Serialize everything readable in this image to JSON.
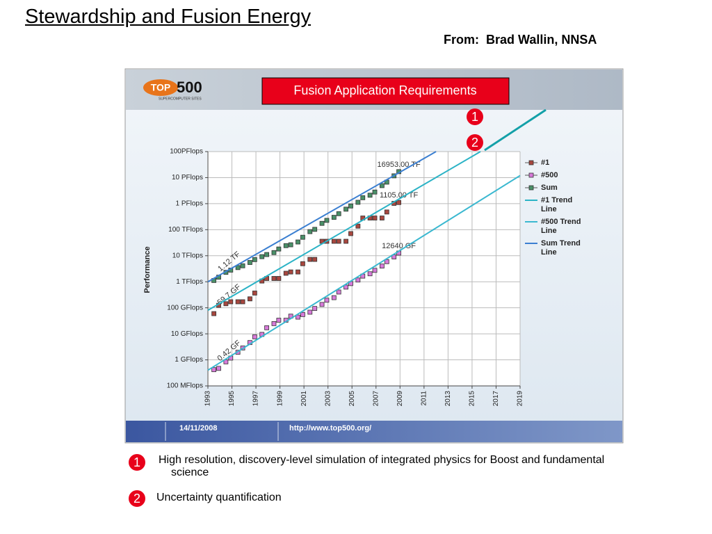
{
  "title": "Stewardship and Fusion Energy",
  "source": "From:  Brad Wallin, NNSA",
  "banner": {
    "logo_a": "TOP",
    "logo_b": "500",
    "logo_subtitle": "SUPERCOMPUTER SITES",
    "overlay": "Fusion Application Requirements"
  },
  "footer": {
    "date": "14/11/2008",
    "url": "http://www.top500.org/"
  },
  "markers": [
    "1",
    "2"
  ],
  "notes": [
    {
      "number": "1",
      "text": "High resolution, discovery-level simulation of integrated physics for Boost and fundamental science"
    },
    {
      "number": "2",
      "text": "Uncertainty quantification"
    }
  ],
  "chart_data": {
    "type": "line",
    "y_label": "Performance",
    "log_y": true,
    "grid": true,
    "legend": "right",
    "xlim": [
      1993,
      2019
    ],
    "xticks": [
      1993,
      1995,
      1997,
      1999,
      2001,
      2003,
      2005,
      2007,
      2009,
      2011,
      2013,
      2015,
      2017,
      2019
    ],
    "ylim": [
      0.1,
      100000000
    ],
    "yticks": [
      {
        "value": 0.1,
        "label": "100 MFlops"
      },
      {
        "value": 1,
        "label": "1 GFlops"
      },
      {
        "value": 10,
        "label": "10 GFlops"
      },
      {
        "value": 100,
        "label": "100 GFlops"
      },
      {
        "value": 1000,
        "label": "1 TFlops"
      },
      {
        "value": 10000,
        "label": "10 TFlops"
      },
      {
        "value": 100000,
        "label": "100 TFlops"
      },
      {
        "value": 1000000,
        "label": "1 PFlops"
      },
      {
        "value": 10000000,
        "label": "10 PFlops"
      },
      {
        "value": 100000000,
        "label": "100PFlops"
      }
    ],
    "x": [
      1993.5,
      1993.9,
      1994.5,
      1994.9,
      1995.5,
      1995.9,
      1996.5,
      1996.9,
      1997.5,
      1997.9,
      1998.5,
      1998.9,
      1999.5,
      1999.9,
      2000.5,
      2000.9,
      2001.5,
      2001.9,
      2002.5,
      2002.9,
      2003.5,
      2003.9,
      2004.5,
      2004.9,
      2005.5,
      2005.9,
      2006.5,
      2006.9,
      2007.5,
      2007.9,
      2008.5,
      2008.9
    ],
    "series": [
      {
        "name": "#1",
        "color": "#a8473f",
        "style": "markers",
        "values": [
          59.7,
          124.5,
          143.4,
          170.4,
          170.4,
          170.4,
          220.4,
          368.2,
          1068,
          1338,
          1338,
          1338,
          2121,
          2379,
          2379,
          4938,
          7226,
          7226,
          35860,
          35860,
          35860,
          35860,
          35860,
          70720,
          136800,
          280600,
          280600,
          280600,
          280600,
          478200,
          1026000,
          1105000
        ],
        "value_labels": [
          "59.7 GF",
          null,
          null,
          null,
          null,
          null,
          null,
          null,
          null,
          null,
          null,
          null,
          null,
          null,
          null,
          null,
          null,
          null,
          null,
          null,
          null,
          null,
          null,
          null,
          null,
          null,
          null,
          null,
          null,
          null,
          null,
          "1105.00 TF"
        ]
      },
      {
        "name": "#500",
        "color": "#d77ad9",
        "style": "markers",
        "values": [
          0.42,
          0.47,
          0.84,
          1.17,
          1.96,
          2.86,
          4.62,
          7.67,
          9.51,
          17.1,
          24.7,
          33.4,
          33.3,
          47.7,
          43.8,
          55.1,
          67.8,
          94.3,
          134.3,
          195.8,
          245.1,
          403.4,
          624,
          850.6,
          1166,
          1646,
          2026,
          2737,
          4005,
          5929,
          9000,
          12640
        ],
        "value_labels": [
          "0.42 GF",
          null,
          null,
          null,
          null,
          null,
          null,
          null,
          null,
          null,
          null,
          null,
          null,
          null,
          null,
          null,
          null,
          null,
          null,
          null,
          null,
          null,
          null,
          null,
          null,
          null,
          null,
          null,
          null,
          null,
          null,
          "12640 GF"
        ]
      },
      {
        "name": "Sum",
        "color": "#4a9068",
        "style": "markers",
        "values": [
          1120,
          1500,
          2300,
          2800,
          3500,
          4100,
          5500,
          7100,
          9200,
          11100,
          13200,
          18100,
          24400,
          26300,
          33700,
          51200,
          84200,
          103000,
          175000,
          228000,
          298000,
          412000,
          614000,
          813000,
          1127000,
          1690000,
          2110000,
          2790000,
          4920000,
          6700000,
          11700000,
          16953000
        ],
        "value_labels": [
          "1.12 TF",
          null,
          null,
          null,
          null,
          null,
          null,
          null,
          null,
          null,
          null,
          null,
          null,
          null,
          null,
          null,
          null,
          null,
          null,
          null,
          null,
          null,
          null,
          null,
          null,
          null,
          null,
          null,
          null,
          null,
          null,
          "16953.00 TF"
        ]
      },
      {
        "name": "#1 Trend Line",
        "color": "#2bb3c6",
        "style": "line",
        "x": [
          1993,
          2015.7
        ],
        "values": [
          80,
          100000000
        ]
      },
      {
        "name": "#500 Trend Line",
        "color": "#3ab8d0",
        "style": "line",
        "x": [
          1993,
          2019
        ],
        "values": [
          0.4,
          12000000
        ]
      },
      {
        "name": "Sum Trend Line",
        "color": "#3b7fd1",
        "style": "line",
        "x": [
          1993,
          2012
        ],
        "values": [
          1000,
          100000000
        ]
      }
    ]
  }
}
